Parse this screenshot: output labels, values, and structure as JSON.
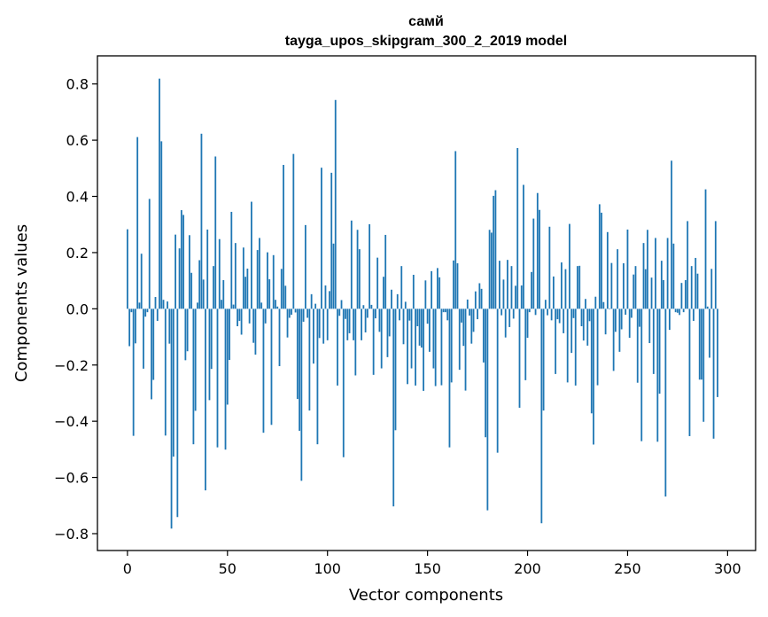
{
  "chart_data": {
    "type": "bar",
    "title": "самй",
    "subtitle": "tayga_upos_skipgram_300_2_2019 model",
    "xlabel": "Vector components",
    "ylabel": "Components values",
    "xlim": [
      -15,
      314
    ],
    "ylim": [
      -0.86,
      0.9
    ],
    "xticks": [
      0,
      50,
      100,
      150,
      200,
      250,
      300
    ],
    "yticks": [
      -0.8,
      -0.6,
      -0.4,
      -0.2,
      0.0,
      0.2,
      0.4,
      0.6,
      0.8
    ],
    "ytick_labels": [
      "−0.8",
      "−0.6",
      "−0.4",
      "−0.2",
      "0.0",
      "0.2",
      "0.4",
      "0.6",
      "0.8"
    ],
    "bar_color": "#1f77b4",
    "values": [
      0.283,
      -0.133,
      -0.012,
      -0.452,
      -0.123,
      0.611,
      0.022,
      0.196,
      -0.213,
      -0.028,
      -0.012,
      0.391,
      -0.322,
      -0.253,
      0.042,
      -0.043,
      0.819,
      0.596,
      0.032,
      -0.451,
      0.026,
      -0.124,
      -0.782,
      -0.526,
      0.264,
      -0.741,
      0.215,
      0.351,
      0.334,
      -0.183,
      -0.151,
      0.262,
      0.128,
      -0.482,
      -0.363,
      0.022,
      0.173,
      0.623,
      0.104,
      -0.646,
      0.282,
      -0.325,
      -0.214,
      0.152,
      0.542,
      -0.493,
      0.248,
      0.032,
      0.102,
      -0.501,
      -0.341,
      -0.182,
      0.345,
      0.015,
      0.234,
      -0.062,
      -0.043,
      -0.092,
      0.218,
      0.114,
      0.143,
      -0.052,
      0.381,
      -0.121,
      -0.163,
      0.209,
      0.252,
      0.022,
      -0.441,
      -0.052,
      0.201,
      0.105,
      -0.413,
      0.191,
      0.032,
      0.008,
      -0.204,
      0.142,
      0.512,
      0.082,
      -0.102,
      -0.032,
      -0.021,
      0.551,
      -0.013,
      -0.321,
      -0.434,
      -0.612,
      -0.046,
      0.298,
      -0.032,
      -0.362,
      0.052,
      -0.195,
      0.018,
      -0.482,
      -0.104,
      0.502,
      -0.124,
      0.083,
      -0.112,
      0.063,
      0.484,
      0.232,
      0.743,
      -0.273,
      -0.025,
      0.031,
      -0.528,
      -0.036,
      -0.112,
      -0.087,
      0.314,
      -0.112,
      -0.237,
      0.281,
      0.212,
      -0.112,
      0.013,
      -0.084,
      -0.032,
      0.301,
      0.014,
      -0.235,
      -0.034,
      0.182,
      -0.082,
      -0.212,
      0.114,
      0.263,
      -0.172,
      -0.098,
      0.068,
      -0.703,
      -0.432,
      0.052,
      -0.041,
      0.152,
      -0.126,
      0.025,
      -0.268,
      -0.042,
      -0.212,
      0.121,
      -0.273,
      -0.062,
      -0.131,
      -0.138,
      -0.292,
      0.101,
      -0.053,
      -0.153,
      0.134,
      -0.212,
      -0.275,
      0.145,
      0.112,
      -0.272,
      -0.012,
      -0.012,
      -0.041,
      -0.493,
      -0.262,
      0.172,
      0.561,
      0.162,
      -0.217,
      -0.049,
      -0.132,
      -0.291,
      0.033,
      -0.024,
      -0.124,
      -0.082,
      0.062,
      -0.037,
      0.091,
      0.071,
      -0.191,
      -0.457,
      -0.717,
      0.281,
      0.271,
      0.402,
      0.422,
      -0.512,
      0.171,
      -0.023,
      0.104,
      -0.102,
      0.174,
      -0.065,
      0.152,
      -0.035,
      0.082,
      0.572,
      -0.352,
      0.083,
      0.441,
      -0.254,
      -0.103,
      -0.012,
      0.131,
      0.321,
      -0.022,
      0.412,
      0.352,
      -0.763,
      -0.362,
      0.032,
      -0.023,
      0.292,
      -0.041,
      0.115,
      -0.232,
      -0.037,
      -0.051,
      0.165,
      -0.087,
      0.141,
      -0.262,
      0.302,
      -0.157,
      -0.033,
      -0.273,
      0.152,
      0.153,
      -0.062,
      -0.113,
      0.035,
      -0.131,
      -0.044,
      -0.372,
      -0.483,
      0.043,
      -0.272,
      0.372,
      0.342,
      0.024,
      -0.091,
      0.273,
      -0.002,
      0.163,
      -0.221,
      -0.082,
      0.212,
      -0.153,
      -0.073,
      0.162,
      -0.021,
      0.282,
      -0.103,
      -0.032,
      0.122,
      0.152,
      -0.263,
      -0.064,
      -0.471,
      0.234,
      0.141,
      0.281,
      -0.122,
      0.111,
      -0.232,
      0.252,
      -0.473,
      -0.302,
      0.171,
      0.102,
      -0.668,
      0.252,
      -0.075,
      0.527,
      0.232,
      -0.012,
      -0.014,
      -0.022,
      0.092,
      -0.012,
      0.102,
      0.312,
      -0.453,
      0.152,
      -0.043,
      0.181,
      0.125,
      -0.252,
      -0.252,
      -0.402,
      0.425,
      0.008,
      -0.174,
      0.142,
      -0.462,
      0.312,
      -0.314
    ]
  }
}
